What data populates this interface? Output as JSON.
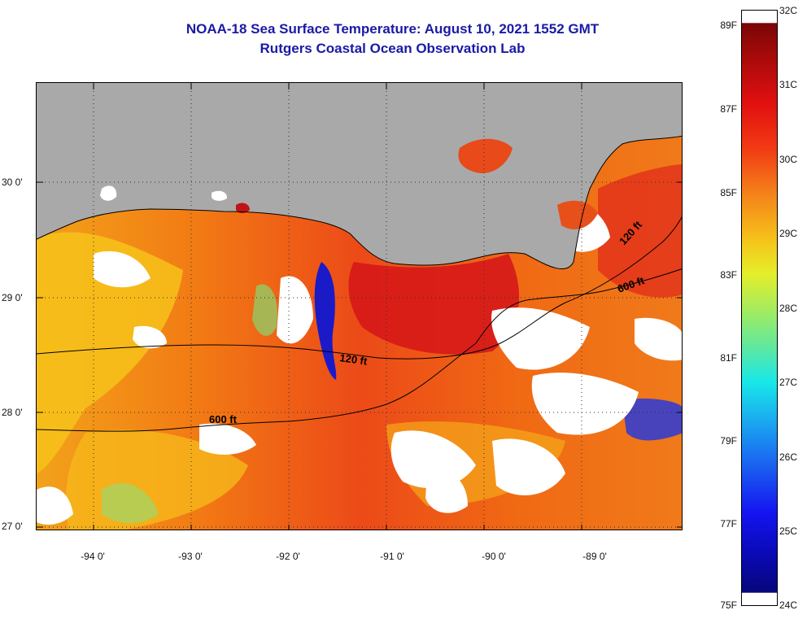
{
  "header": {
    "title": "NOAA-18 Sea Surface Temperature:  August 10, 2021 1552 GMT",
    "subtitle": "Rutgers Coastal Ocean Observation Lab"
  },
  "map": {
    "lon_labels": [
      "-94 0'",
      "-93 0'",
      "-92 0'",
      "-91 0'",
      "-90 0'",
      "-89 0'"
    ],
    "lat_labels": [
      "30 0'",
      "29 0'",
      "28 0'",
      "27 0'"
    ],
    "contour_labels": [
      {
        "id": "c120a",
        "text": "120 ft"
      },
      {
        "id": "c120b",
        "text": "120 ft"
      },
      {
        "id": "c600a",
        "text": "600 ft"
      },
      {
        "id": "c600b",
        "text": "600 ft"
      }
    ],
    "colors": {
      "land": "#a9a9a9",
      "warm": "#e8331a",
      "hot": "#d11414",
      "orange": "#f26a14",
      "yellow": "#f7c21a",
      "cool": "#2a2ad4",
      "cloud": "#ffffff"
    }
  },
  "colorbar": {
    "fahrenheit": [
      "89F",
      "87F",
      "85F",
      "83F",
      "81F",
      "79F",
      "77F",
      "75F"
    ],
    "celsius": [
      "32C",
      "31C",
      "30C",
      "29C",
      "28C",
      "27C",
      "26C",
      "25C",
      "24C"
    ]
  }
}
